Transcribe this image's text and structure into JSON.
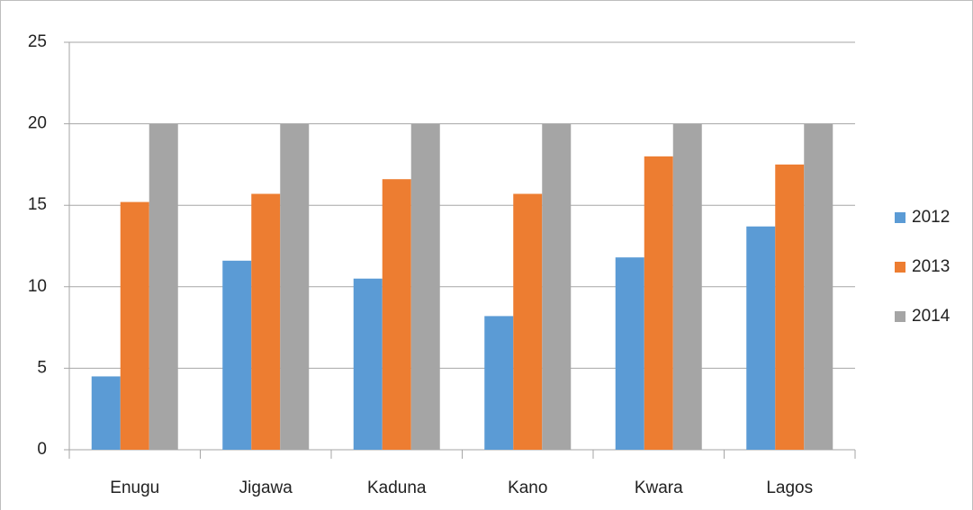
{
  "chart_data": {
    "type": "bar",
    "categories": [
      "Enugu",
      "Jigawa",
      "Kaduna",
      "Kano",
      "Kwara",
      "Lagos"
    ],
    "series": [
      {
        "name": "2012",
        "color": "#5b9bd5",
        "values": [
          4.5,
          11.6,
          10.5,
          8.2,
          11.8,
          13.7
        ]
      },
      {
        "name": "2013",
        "color": "#ed7d31",
        "values": [
          15.2,
          15.7,
          16.6,
          15.7,
          18,
          17.5
        ]
      },
      {
        "name": "2014",
        "color": "#a5a5a5",
        "values": [
          20,
          20,
          20,
          20,
          20,
          20
        ]
      }
    ],
    "ylim": [
      0,
      25
    ],
    "yticks": [
      0,
      5,
      10,
      15,
      20,
      25
    ],
    "grid": true,
    "legend": "right"
  }
}
